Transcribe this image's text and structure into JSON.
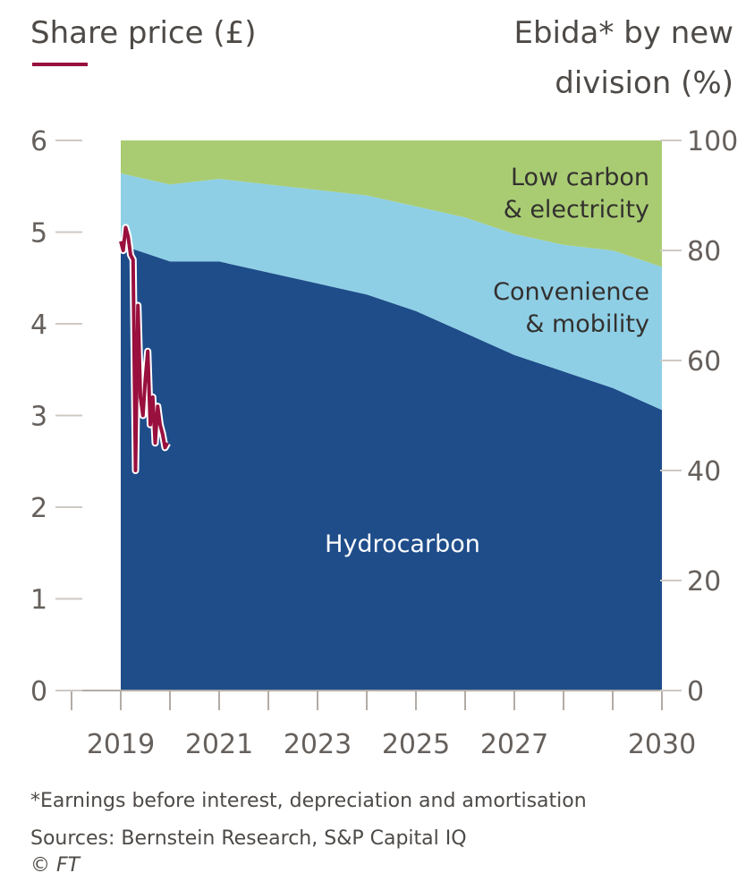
{
  "chart_data": {
    "type": "area",
    "left_axis_title": "Share price (£)",
    "right_axis_title_line1": "Ebida* by new",
    "right_axis_title_line2": "division (%)",
    "x_labels": [
      {
        "year": 2019,
        "label": "2019"
      },
      {
        "year": 2021,
        "label": "2021"
      },
      {
        "year": 2023,
        "label": "2023"
      },
      {
        "year": 2025,
        "label": "2025"
      },
      {
        "year": 2027,
        "label": "2027"
      },
      {
        "year": 2030,
        "label": "2030"
      }
    ],
    "x_tick_years": [
      2018,
      2019,
      2020,
      2021,
      2022,
      2023,
      2024,
      2025,
      2026,
      2027,
      2028,
      2029,
      2030
    ],
    "xlim": [
      2018,
      2030
    ],
    "left_ylim": [
      0,
      6
    ],
    "left_ticks": [
      {
        "value": 0,
        "label": "0"
      },
      {
        "value": 1,
        "label": "1"
      },
      {
        "value": 2,
        "label": "2"
      },
      {
        "value": 3,
        "label": "3"
      },
      {
        "value": 4,
        "label": "4"
      },
      {
        "value": 5,
        "label": "5"
      },
      {
        "value": 6,
        "label": "6"
      }
    ],
    "right_ylim": [
      0,
      100
    ],
    "right_ticks": [
      {
        "value": 0,
        "label": "0"
      },
      {
        "value": 20,
        "label": "20"
      },
      {
        "value": 40,
        "label": "40"
      },
      {
        "value": 60,
        "label": "60"
      },
      {
        "value": 80,
        "label": "80"
      },
      {
        "value": 100,
        "label": "100"
      }
    ],
    "area_series": [
      {
        "name": "Hydrocarbon",
        "label_lines": [
          "Hydrocarbon"
        ],
        "color": "#1e4d8a",
        "label_color": "#ffffff",
        "x": [
          2019,
          2020,
          2021,
          2022,
          2023,
          2024,
          2025,
          2026,
          2027,
          2028,
          2029,
          2030
        ],
        "values": [
          81,
          78,
          78,
          76,
          74,
          72,
          69,
          65,
          61,
          58,
          55,
          51
        ]
      },
      {
        "name": "Convenience & mobility",
        "label_lines": [
          "Convenience",
          "& mobility"
        ],
        "color": "#8ecfe6",
        "label_color": "#33302e",
        "x": [
          2019,
          2020,
          2021,
          2022,
          2023,
          2024,
          2025,
          2026,
          2027,
          2028,
          2029,
          2030
        ],
        "values": [
          13,
          14,
          15,
          16,
          17,
          18,
          19,
          21,
          22,
          23,
          25,
          26
        ]
      },
      {
        "name": "Low carbon & electricity",
        "label_lines": [
          "Low carbon",
          "& electricity"
        ],
        "color": "#a9cc73",
        "label_color": "#33302e",
        "x": [
          2019,
          2020,
          2021,
          2022,
          2023,
          2024,
          2025,
          2026,
          2027,
          2028,
          2029,
          2030
        ],
        "values": [
          6,
          8,
          7,
          8,
          9,
          10,
          12,
          14,
          17,
          19,
          20,
          23
        ]
      }
    ],
    "line_series": {
      "name": "Share price",
      "color": "#990f3d",
      "x": [
        2019.0,
        2019.05,
        2019.1,
        2019.15,
        2019.2,
        2019.25,
        2019.3,
        2019.35,
        2019.4,
        2019.45,
        2019.5,
        2019.55,
        2019.6,
        2019.65,
        2019.7,
        2019.75,
        2019.8,
        2019.85,
        2019.9,
        2019.95
      ],
      "values": [
        4.9,
        4.8,
        5.05,
        4.95,
        4.75,
        4.7,
        2.4,
        4.2,
        3.2,
        3.0,
        3.4,
        3.7,
        2.9,
        3.2,
        2.7,
        3.1,
        2.9,
        2.8,
        2.65,
        2.7
      ]
    }
  },
  "footnote": "*Earnings before interest, depreciation and amortisation",
  "sources": "Sources: Bernstein Research, S&P Capital IQ",
  "credit": "© FT"
}
